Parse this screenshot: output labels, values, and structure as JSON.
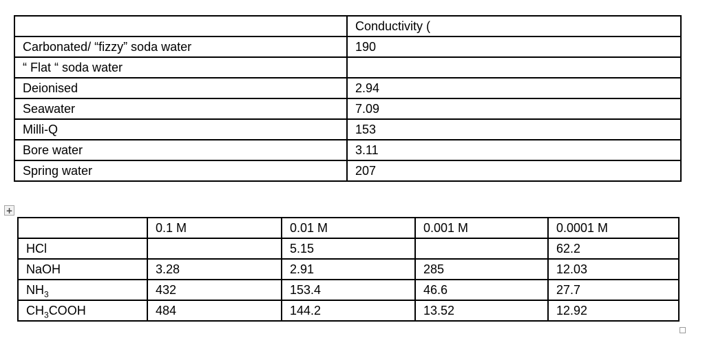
{
  "icons": {
    "table_move_icon": "+"
  },
  "table1": {
    "header": [
      "",
      "Conductivity ("
    ],
    "rows": [
      {
        "label": "Carbonated/ “fizzy” soda water",
        "value": "190"
      },
      {
        "label": "“ Flat “ soda water",
        "value": ""
      },
      {
        "label": "Deionised",
        "value": "2.94"
      },
      {
        "label": "Seawater",
        "value": "7.09"
      },
      {
        "label": "Milli-Q",
        "value": "153"
      },
      {
        "label": "Bore water",
        "value": "3.11"
      },
      {
        "label": "Spring water",
        "value": "207"
      }
    ]
  },
  "table2": {
    "header": [
      "",
      "0.1 M",
      "0.01 M",
      "0.001 M",
      "0.0001 M"
    ],
    "rows": [
      {
        "label_pre": "HCl",
        "label_sub": "",
        "label_post": "",
        "values": [
          "",
          "5.15",
          "",
          "62.2"
        ]
      },
      {
        "label_pre": "NaOH",
        "label_sub": "",
        "label_post": "",
        "values": [
          "3.28",
          "2.91",
          "285",
          "12.03"
        ]
      },
      {
        "label_pre": "NH",
        "label_sub": "3",
        "label_post": "",
        "values": [
          "432",
          "153.4",
          "46.6",
          "27.7"
        ]
      },
      {
        "label_pre": "CH",
        "label_sub": "3",
        "label_post": "COOH",
        "values": [
          "484",
          "144.2",
          "13.52",
          "12.92"
        ]
      }
    ]
  }
}
